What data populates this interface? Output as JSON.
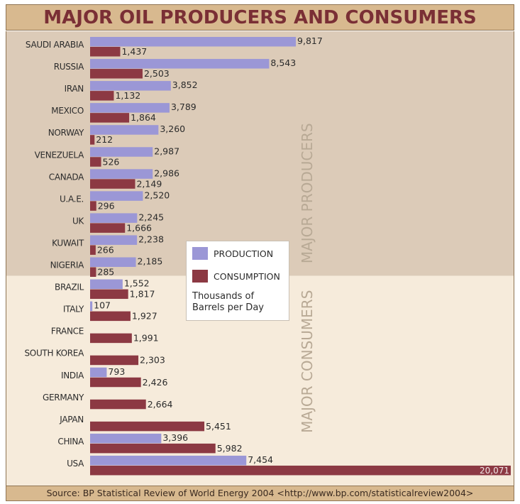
{
  "title": "MAJOR OIL PRODUCERS AND CONSUMERS",
  "source": "Source: BP Statistical Review of World Energy 2004 <http://www.bp.com/statisticalreview2004>",
  "legend": {
    "production": "PRODUCTION",
    "consumption": "CONSUMPTION",
    "note_line1": "Thousands of",
    "note_line2": "Barrels per Day"
  },
  "group_labels": {
    "producers": "MAJOR PRODUCERS",
    "consumers": "MAJOR CONSUMERS"
  },
  "colors": {
    "production": "#9b97d6",
    "consumption": "#8c3943",
    "producers_bg": "#dccbb8",
    "consumers_bg": "#f6ebdb",
    "title_bg": "#d8b98f",
    "title_text": "#7a2f35",
    "group_text": "#b8a995"
  },
  "chart_data": {
    "type": "bar",
    "orientation": "horizontal",
    "categories": [
      "SAUDI ARABIA",
      "RUSSIA",
      "IRAN",
      "MEXICO",
      "NORWAY",
      "VENEZUELA",
      "CANADA",
      "U.A.E.",
      "UK",
      "KUWAIT",
      "NIGERIA",
      "BRAZIL",
      "ITALY",
      "FRANCE",
      "SOUTH KOREA",
      "INDIA",
      "GERMANY",
      "JAPAN",
      "CHINA",
      "USA"
    ],
    "groups": [
      {
        "name": "MAJOR PRODUCERS",
        "count": 11
      },
      {
        "name": "MAJOR CONSUMERS",
        "count": 9
      }
    ],
    "series": [
      {
        "name": "PRODUCTION",
        "values": [
          9817,
          8543,
          3852,
          3789,
          3260,
          2987,
          2986,
          2520,
          2245,
          2238,
          2185,
          1552,
          107,
          null,
          null,
          793,
          null,
          null,
          3396,
          7454
        ],
        "labels": [
          "9,817",
          "8,543",
          "3,852",
          "3,789",
          "3,260",
          "2,987",
          "2,986",
          "2,520",
          "2,245",
          "2,238",
          "2,185",
          "1,552",
          "107",
          "",
          "",
          "793",
          "",
          "",
          "3,396",
          "7,454"
        ]
      },
      {
        "name": "CONSUMPTION",
        "values": [
          1437,
          2503,
          1132,
          1864,
          212,
          526,
          2149,
          296,
          1666,
          266,
          285,
          1817,
          1927,
          1991,
          2303,
          2426,
          2664,
          5451,
          5982,
          20071
        ],
        "labels": [
          "1,437",
          "2,503",
          "1,132",
          "1,864",
          "212",
          "526",
          "2,149",
          "296",
          "1,666",
          "266",
          "285",
          "1,817",
          "1,927",
          "1,991",
          "2,303",
          "2,426",
          "2,664",
          "5,451",
          "5,982",
          "20,071"
        ]
      }
    ],
    "unit": "Thousands of Barrels per Day",
    "xlim": [
      0,
      20071
    ],
    "legend_position": "center",
    "grid": false
  }
}
